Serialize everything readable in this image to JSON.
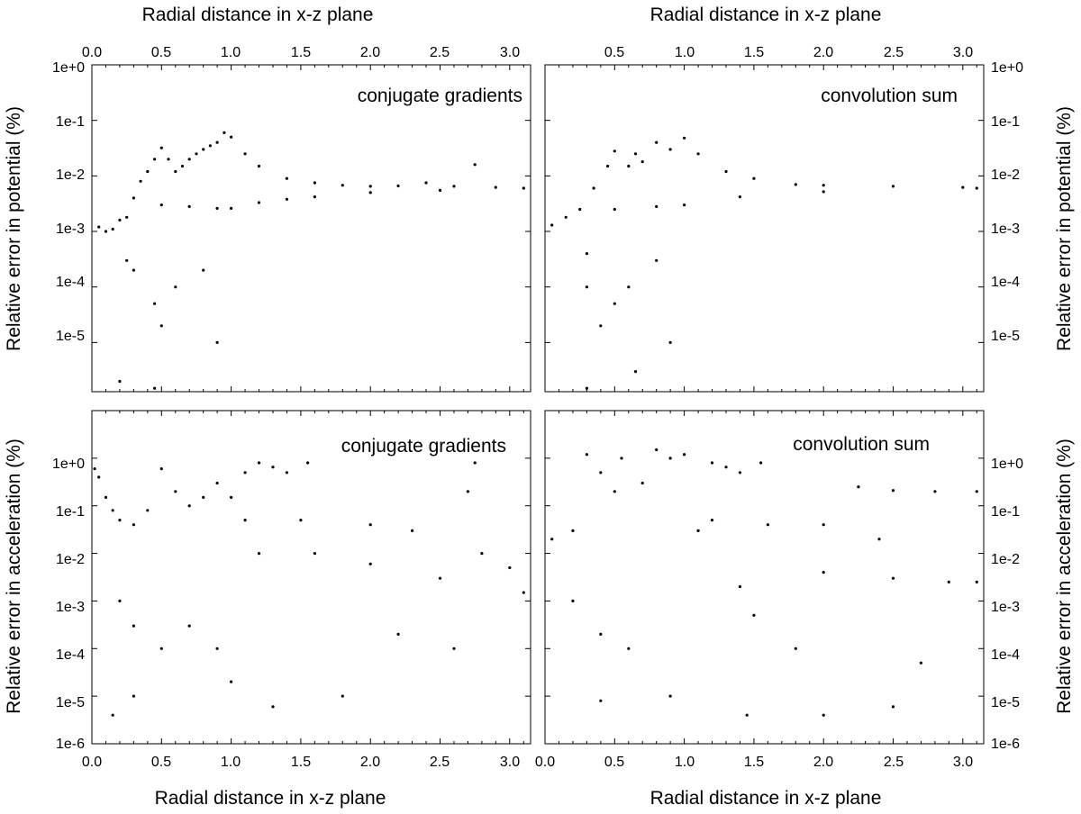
{
  "chart_data": [
    {
      "type": "scatter",
      "label": "conjugate gradients",
      "xlabel_top": "Radial distance in x-z plane",
      "ylabel": "Relative error in potential (%)",
      "xlim": [
        0.0,
        3.15
      ],
      "xticks": [
        "0.0",
        "0.5",
        "1.0",
        "1.5",
        "2.0",
        "2.5",
        "3.0"
      ],
      "yscale": "log",
      "ylim": [
        1.3e-06,
        1.0
      ],
      "yticks": [
        "1e+0",
        "1e-1",
        "1e-2",
        "1e-3",
        "1e-4",
        "1e-5"
      ],
      "points": [
        [
          0.05,
          0.0012
        ],
        [
          0.1,
          0.001
        ],
        [
          0.15,
          0.0011
        ],
        [
          0.2,
          0.0016
        ],
        [
          0.25,
          0.0018
        ],
        [
          0.3,
          0.004
        ],
        [
          0.35,
          0.008
        ],
        [
          0.4,
          0.012
        ],
        [
          0.45,
          0.02
        ],
        [
          0.5,
          0.032
        ],
        [
          0.55,
          0.02
        ],
        [
          0.6,
          0.012
        ],
        [
          0.65,
          0.015
        ],
        [
          0.7,
          0.02
        ],
        [
          0.75,
          0.025
        ],
        [
          0.8,
          0.03
        ],
        [
          0.85,
          0.035
        ],
        [
          0.9,
          0.04
        ],
        [
          0.95,
          0.06
        ],
        [
          1.0,
          0.05
        ],
        [
          1.1,
          0.025
        ],
        [
          1.2,
          0.015
        ],
        [
          1.4,
          0.009
        ],
        [
          1.6,
          0.0075
        ],
        [
          1.8,
          0.0068
        ],
        [
          2.0,
          0.0065
        ],
        [
          2.2,
          0.0066
        ],
        [
          2.4,
          0.0075
        ],
        [
          2.6,
          0.0065
        ],
        [
          2.75,
          0.016
        ],
        [
          2.9,
          0.0062
        ],
        [
          3.1,
          0.006
        ],
        [
          0.5,
          0.003
        ],
        [
          0.7,
          0.0028
        ],
        [
          0.9,
          0.0026
        ],
        [
          1.0,
          0.0026
        ],
        [
          1.2,
          0.0033
        ],
        [
          1.4,
          0.0038
        ],
        [
          1.6,
          0.0042
        ],
        [
          2.0,
          0.005
        ],
        [
          2.5,
          0.0055
        ],
        [
          0.25,
          0.0003
        ],
        [
          0.3,
          0.0002
        ],
        [
          0.45,
          5e-05
        ],
        [
          0.5,
          2e-05
        ],
        [
          0.6,
          0.0001
        ],
        [
          0.8,
          0.0002
        ],
        [
          0.9,
          1e-05
        ],
        [
          0.2,
          2e-06
        ],
        [
          0.45,
          1.5e-06
        ]
      ]
    },
    {
      "type": "scatter",
      "label": "convolution sum",
      "xlabel_top": "Radial distance in x-z plane",
      "ylabel": "Relative error in potential (%)",
      "xlim": [
        0.0,
        3.15
      ],
      "xticks": [
        "0.5",
        "1.0",
        "1.5",
        "2.0",
        "2.5",
        "3.0"
      ],
      "yscale": "log",
      "ylim": [
        1.3e-06,
        1.0
      ],
      "yticks": [
        "1e+0",
        "1e-1",
        "1e-2",
        "1e-3",
        "1e-4",
        "1e-5"
      ],
      "points": [
        [
          0.05,
          0.0013
        ],
        [
          0.15,
          0.0018
        ],
        [
          0.25,
          0.0025
        ],
        [
          0.35,
          0.006
        ],
        [
          0.45,
          0.015
        ],
        [
          0.5,
          0.028
        ],
        [
          0.6,
          0.015
        ],
        [
          0.65,
          0.025
        ],
        [
          0.7,
          0.018
        ],
        [
          0.8,
          0.04
        ],
        [
          0.9,
          0.03
        ],
        [
          1.0,
          0.048
        ],
        [
          1.1,
          0.025
        ],
        [
          1.3,
          0.012
        ],
        [
          1.5,
          0.009
        ],
        [
          1.8,
          0.007
        ],
        [
          2.0,
          0.0068
        ],
        [
          2.5,
          0.0065
        ],
        [
          3.0,
          0.0062
        ],
        [
          3.1,
          0.006
        ],
        [
          0.3,
          0.0004
        ],
        [
          0.3,
          0.0001
        ],
        [
          0.4,
          2e-05
        ],
        [
          0.5,
          5e-05
        ],
        [
          0.6,
          0.0001
        ],
        [
          0.8,
          0.0003
        ],
        [
          0.9,
          1e-05
        ],
        [
          0.3,
          1.5e-06
        ],
        [
          0.65,
          3e-06
        ],
        [
          0.5,
          0.0025
        ],
        [
          0.8,
          0.0028
        ],
        [
          1.0,
          0.003
        ],
        [
          1.4,
          0.0042
        ],
        [
          2.0,
          0.0052
        ]
      ]
    },
    {
      "type": "scatter",
      "label": "conjugate gradients",
      "xlabel": "Radial distance in x-z plane",
      "ylabel": "Relative error in acceleration (%)",
      "xlim": [
        0.0,
        3.15
      ],
      "xticks": [
        "0.0",
        "0.5",
        "1.0",
        "1.5",
        "2.0",
        "2.5",
        "3.0"
      ],
      "yscale": "log",
      "ylim": [
        1e-06,
        10
      ],
      "yticks": [
        "1e+0",
        "1e-1",
        "1e-2",
        "1e-3",
        "1e-4",
        "1e-5",
        "1e-6"
      ],
      "points": [
        [
          0.02,
          0.6
        ],
        [
          0.05,
          0.4
        ],
        [
          0.1,
          0.15
        ],
        [
          0.15,
          0.08
        ],
        [
          0.2,
          0.05
        ],
        [
          0.3,
          0.04
        ],
        [
          0.4,
          0.08
        ],
        [
          0.5,
          0.6
        ],
        [
          0.6,
          0.2
        ],
        [
          0.7,
          0.1
        ],
        [
          0.8,
          0.15
        ],
        [
          0.9,
          0.3
        ],
        [
          1.0,
          0.15
        ],
        [
          1.1,
          0.5
        ],
        [
          1.2,
          0.8
        ],
        [
          1.3,
          0.65
        ],
        [
          1.4,
          0.5
        ],
        [
          1.55,
          0.8
        ],
        [
          1.1,
          0.05
        ],
        [
          1.5,
          0.05
        ],
        [
          2.0,
          0.04
        ],
        [
          2.3,
          0.03
        ],
        [
          1.2,
          0.01
        ],
        [
          1.6,
          0.01
        ],
        [
          2.0,
          0.006
        ],
        [
          2.5,
          0.003
        ],
        [
          2.75,
          0.8
        ],
        [
          2.7,
          0.2
        ],
        [
          2.8,
          0.01
        ],
        [
          3.0,
          0.005
        ],
        [
          3.1,
          0.0015
        ],
        [
          0.2,
          0.001
        ],
        [
          0.3,
          0.0003
        ],
        [
          0.5,
          0.0001
        ],
        [
          0.7,
          0.0003
        ],
        [
          0.9,
          0.0001
        ],
        [
          1.0,
          2e-05
        ],
        [
          1.3,
          6e-06
        ],
        [
          1.8,
          1e-05
        ],
        [
          0.15,
          4e-06
        ],
        [
          0.3,
          1e-05
        ],
        [
          2.2,
          0.0002
        ],
        [
          2.6,
          0.0001
        ]
      ]
    },
    {
      "type": "scatter",
      "label": "convolution sum",
      "xlabel": "Radial distance in x-z plane",
      "ylabel": "Relative error in acceleration (%)",
      "xlim": [
        0.0,
        3.15
      ],
      "xticks": [
        "0.0",
        "0.5",
        "1.0",
        "1.5",
        "2.0",
        "2.5",
        "3.0"
      ],
      "yscale": "log",
      "ylim": [
        1e-06,
        10
      ],
      "yticks": [
        "1e+0",
        "1e-1",
        "1e-2",
        "1e-3",
        "1e-4",
        "1e-5",
        "1e-6"
      ],
      "points": [
        [
          0.05,
          0.02
        ],
        [
          0.2,
          0.03
        ],
        [
          0.3,
          1.2
        ],
        [
          0.4,
          0.5
        ],
        [
          0.5,
          0.2
        ],
        [
          0.55,
          1.0
        ],
        [
          0.7,
          0.3
        ],
        [
          0.8,
          1.5
        ],
        [
          0.9,
          1.0
        ],
        [
          1.0,
          1.2
        ],
        [
          1.1,
          0.03
        ],
        [
          1.2,
          0.8
        ],
        [
          1.3,
          0.65
        ],
        [
          1.4,
          0.5
        ],
        [
          1.55,
          0.8
        ],
        [
          1.2,
          0.05
        ],
        [
          1.6,
          0.04
        ],
        [
          2.0,
          0.04
        ],
        [
          2.4,
          0.02
        ],
        [
          2.25,
          0.25
        ],
        [
          2.5,
          0.21
        ],
        [
          2.8,
          0.2
        ],
        [
          3.1,
          0.2
        ],
        [
          1.4,
          0.002
        ],
        [
          1.5,
          0.0005
        ],
        [
          2.0,
          0.004
        ],
        [
          2.5,
          0.003
        ],
        [
          2.9,
          0.0025
        ],
        [
          3.1,
          0.0025
        ],
        [
          0.2,
          0.001
        ],
        [
          0.4,
          0.0002
        ],
        [
          0.6,
          0.0001
        ],
        [
          0.9,
          1e-05
        ],
        [
          1.45,
          4e-06
        ],
        [
          2.0,
          4e-06
        ],
        [
          2.5,
          6e-06
        ],
        [
          0.4,
          8e-06
        ],
        [
          1.8,
          0.0001
        ],
        [
          2.7,
          5e-05
        ]
      ]
    }
  ]
}
